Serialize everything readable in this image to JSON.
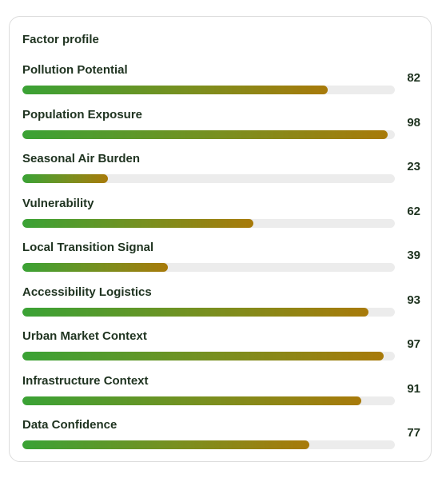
{
  "panel": {
    "title": "Factor profile",
    "bar_colors": {
      "track": "#ececec",
      "gradient_start": "#3aa235",
      "gradient_end": "#a87a0a"
    }
  },
  "factors": [
    {
      "label": "Pollution Potential",
      "value": "82"
    },
    {
      "label": "Population Exposure",
      "value": "98"
    },
    {
      "label": "Seasonal Air Burden",
      "value": "23"
    },
    {
      "label": "Vulnerability",
      "value": "62"
    },
    {
      "label": "Local Transition Signal",
      "value": "39"
    },
    {
      "label": "Accessibility Logistics",
      "value": "93"
    },
    {
      "label": "Urban Market Context",
      "value": "97"
    },
    {
      "label": "Infrastructure Context",
      "value": "91"
    },
    {
      "label": "Data Confidence",
      "value": "77"
    }
  ]
}
